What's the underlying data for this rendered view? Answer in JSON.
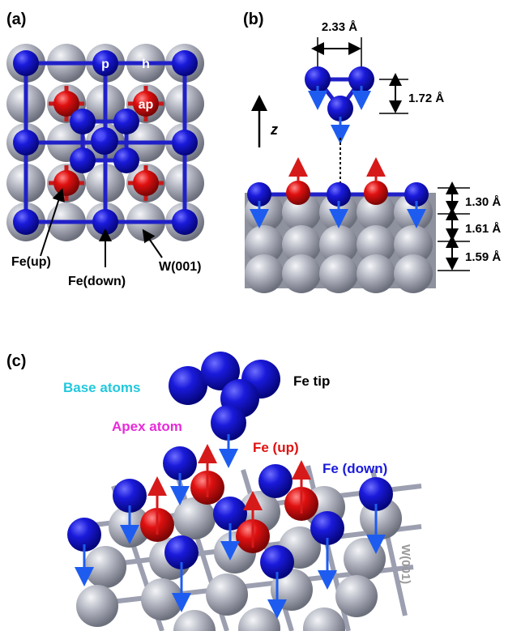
{
  "panels": {
    "a": {
      "tag": "(a)",
      "site_p": "p",
      "site_h": "h",
      "site_ap": "ap",
      "fe_up": "Fe(up)",
      "fe_down": "Fe(down)",
      "substrate": "W(001)"
    },
    "b": {
      "tag": "(b)",
      "tip_width": "2.33 Å",
      "tip_height": "1.72 Å",
      "axis": "z",
      "spacing_1": "1.30 Å",
      "spacing_2": "1.61 Å",
      "spacing_3": "1.59 Å"
    },
    "c": {
      "tag": "(c)",
      "base_atoms": "Base atoms",
      "apex_atom": "Apex atom",
      "fe_tip": "Fe tip",
      "fe_up": "Fe (up)",
      "fe_down": "Fe (down)",
      "substrate": "W(001)"
    }
  },
  "colors": {
    "fe_down": "#1a1adb",
    "fe_up": "#e01010",
    "tungsten": "#a8abb8",
    "arrow_down": "#1e5cf0",
    "arrow_up": "#d61a1a",
    "base_label": "#22c8dc",
    "apex_label": "#e82ad8",
    "fe_up_label": "#e01010",
    "fe_down_label": "#1a1adb",
    "substrate_label": "#9a9a9a"
  }
}
